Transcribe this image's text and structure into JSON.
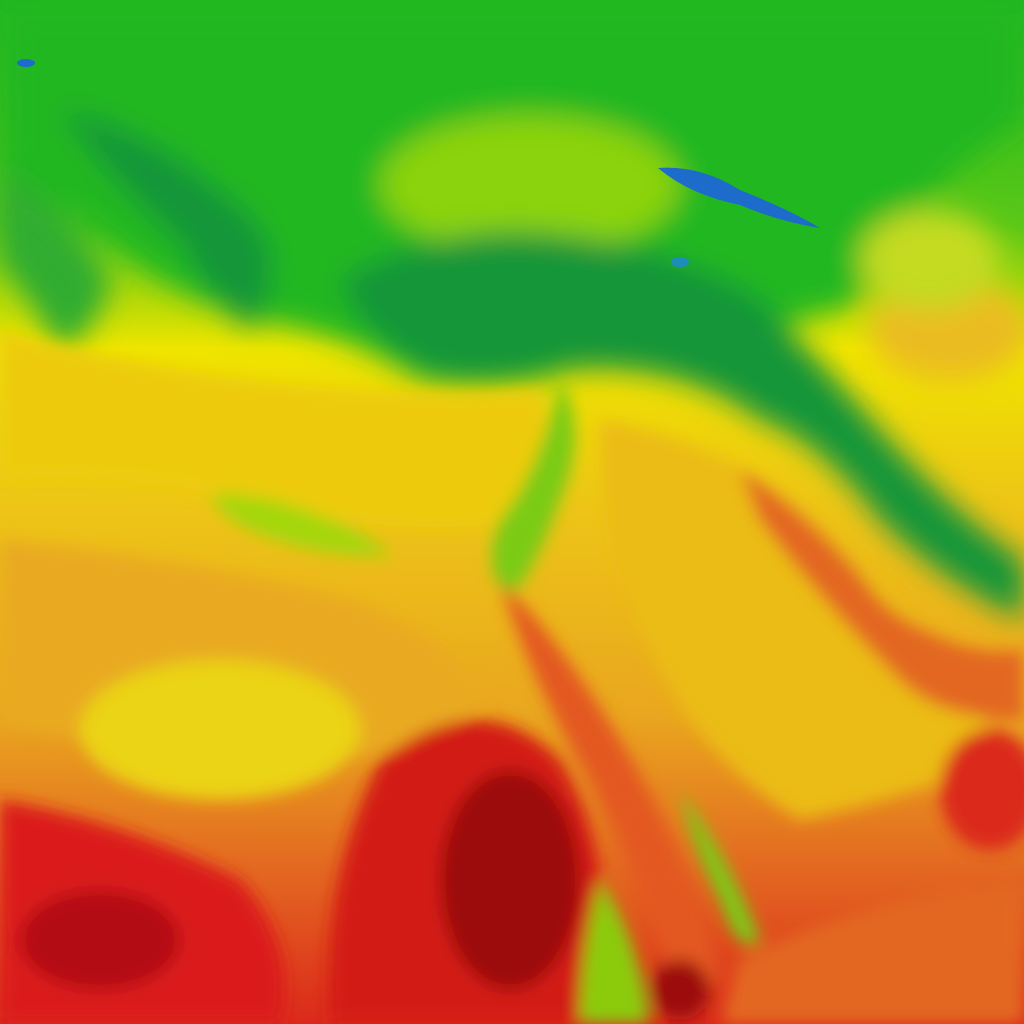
{
  "map": {
    "type": "temperature-heatmap",
    "palette": {
      "cold_blue": "#1e6fd0",
      "cool_teal": "#12a070",
      "green": "#22bb22",
      "dark_green": "#189a3a",
      "light_green": "#8ed810",
      "yellow": "#f4ea00",
      "gold": "#f2c818",
      "orange": "#ec9420",
      "red_orange": "#e85a22",
      "red": "#e01c1c",
      "dark_red": "#a00810"
    }
  }
}
